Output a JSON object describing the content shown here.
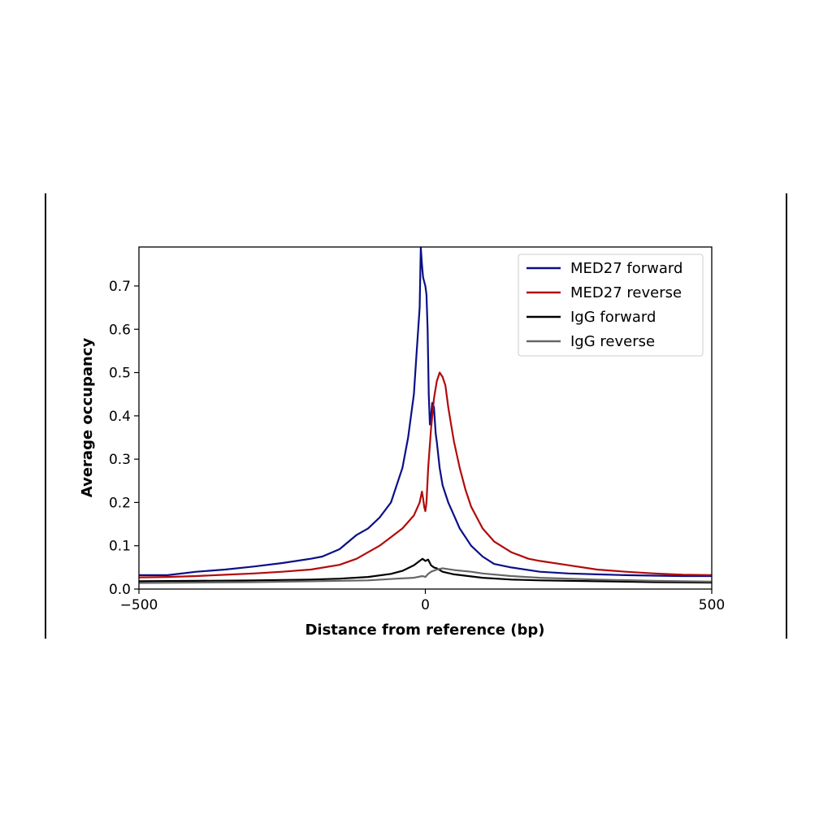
{
  "chart_data": {
    "type": "line",
    "title": "",
    "xlabel": "Distance from reference (bp)",
    "ylabel": "Average occupancy",
    "xlim": [
      -500,
      500
    ],
    "ylim": [
      0,
      0.79
    ],
    "x_ticks": [
      -500,
      0,
      500
    ],
    "x_tick_labels": [
      "−500",
      "0",
      "500"
    ],
    "y_ticks": [
      0.0,
      0.1,
      0.2,
      0.3,
      0.4,
      0.5,
      0.6,
      0.7
    ],
    "y_tick_labels": [
      "0.0",
      "0.1",
      "0.2",
      "0.3",
      "0.4",
      "0.5",
      "0.6",
      "0.7"
    ],
    "grid": false,
    "legend_position": "top-right",
    "series": [
      {
        "name": "MED27 forward",
        "color": "#0b0f86",
        "x": [
          -500,
          -450,
          -400,
          -350,
          -300,
          -250,
          -200,
          -180,
          -150,
          -120,
          -100,
          -80,
          -60,
          -40,
          -30,
          -20,
          -15,
          -10,
          -8,
          -6,
          -4,
          -2,
          0,
          2,
          4,
          6,
          8,
          10,
          12,
          15,
          18,
          20,
          25,
          30,
          40,
          50,
          60,
          80,
          100,
          120,
          150,
          200,
          250,
          300,
          350,
          400,
          450,
          500
        ],
        "y": [
          0.032,
          0.032,
          0.04,
          0.045,
          0.052,
          0.06,
          0.07,
          0.075,
          0.092,
          0.125,
          0.14,
          0.165,
          0.2,
          0.28,
          0.35,
          0.45,
          0.55,
          0.65,
          0.79,
          0.75,
          0.72,
          0.71,
          0.7,
          0.68,
          0.6,
          0.45,
          0.38,
          0.4,
          0.43,
          0.42,
          0.36,
          0.34,
          0.28,
          0.24,
          0.2,
          0.17,
          0.14,
          0.1,
          0.075,
          0.058,
          0.05,
          0.04,
          0.036,
          0.034,
          0.032,
          0.031,
          0.03,
          0.03
        ]
      },
      {
        "name": "MED27 reverse",
        "color": "#b20a0a",
        "x": [
          -500,
          -450,
          -400,
          -350,
          -300,
          -250,
          -200,
          -150,
          -120,
          -100,
          -80,
          -60,
          -40,
          -20,
          -10,
          -6,
          -4,
          -2,
          0,
          2,
          5,
          10,
          15,
          20,
          25,
          30,
          35,
          40,
          45,
          50,
          60,
          70,
          80,
          100,
          120,
          150,
          180,
          200,
          250,
          300,
          350,
          400,
          450,
          500
        ],
        "y": [
          0.027,
          0.028,
          0.03,
          0.033,
          0.036,
          0.04,
          0.045,
          0.056,
          0.07,
          0.085,
          0.1,
          0.12,
          0.14,
          0.17,
          0.2,
          0.225,
          0.21,
          0.19,
          0.18,
          0.2,
          0.28,
          0.37,
          0.44,
          0.48,
          0.5,
          0.49,
          0.47,
          0.42,
          0.38,
          0.34,
          0.28,
          0.23,
          0.19,
          0.14,
          0.11,
          0.085,
          0.07,
          0.065,
          0.055,
          0.045,
          0.04,
          0.036,
          0.033,
          0.032
        ]
      },
      {
        "name": "IgG forward",
        "color": "#000000",
        "x": [
          -500,
          -400,
          -300,
          -200,
          -150,
          -100,
          -60,
          -40,
          -20,
          -10,
          -5,
          0,
          5,
          10,
          15,
          20,
          30,
          50,
          100,
          150,
          200,
          300,
          400,
          500
        ],
        "y": [
          0.018,
          0.019,
          0.02,
          0.022,
          0.024,
          0.028,
          0.035,
          0.042,
          0.055,
          0.065,
          0.07,
          0.065,
          0.068,
          0.055,
          0.05,
          0.048,
          0.04,
          0.034,
          0.026,
          0.022,
          0.02,
          0.018,
          0.016,
          0.015
        ]
      },
      {
        "name": "IgG reverse",
        "color": "#666666",
        "x": [
          -500,
          -400,
          -300,
          -200,
          -100,
          -50,
          -20,
          -5,
          0,
          5,
          10,
          20,
          30,
          50,
          80,
          100,
          150,
          200,
          300,
          400,
          500
        ],
        "y": [
          0.014,
          0.015,
          0.016,
          0.018,
          0.02,
          0.024,
          0.026,
          0.03,
          0.028,
          0.035,
          0.04,
          0.045,
          0.048,
          0.044,
          0.04,
          0.036,
          0.03,
          0.026,
          0.022,
          0.019,
          0.017
        ]
      }
    ]
  }
}
